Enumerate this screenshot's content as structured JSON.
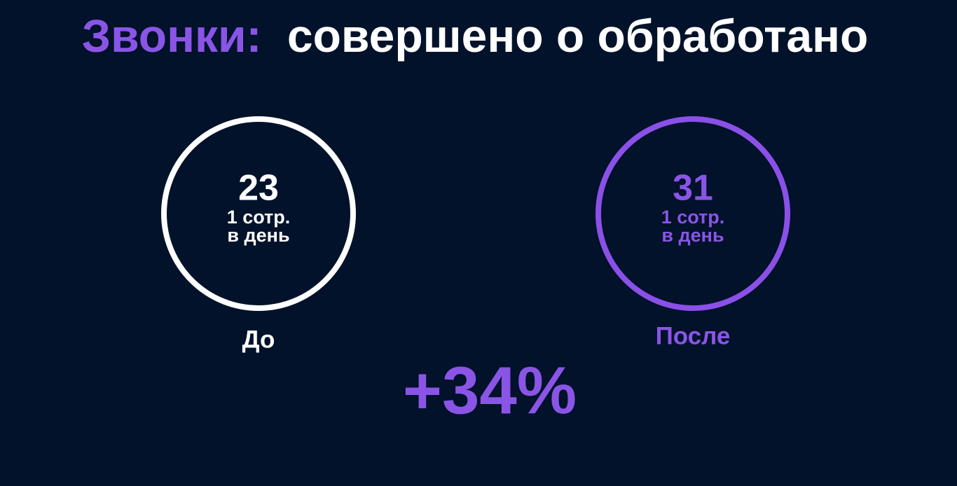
{
  "title": {
    "accent": "Звонки:",
    "rest": "совершено о обработано"
  },
  "before": {
    "value": "23",
    "unit_line1": "1 сотр.",
    "unit_line2": "в день",
    "label": "До"
  },
  "after": {
    "value": "31",
    "unit_line1": "1 сотр.",
    "unit_line2": "в день",
    "label": "После"
  },
  "change": "+34%"
}
